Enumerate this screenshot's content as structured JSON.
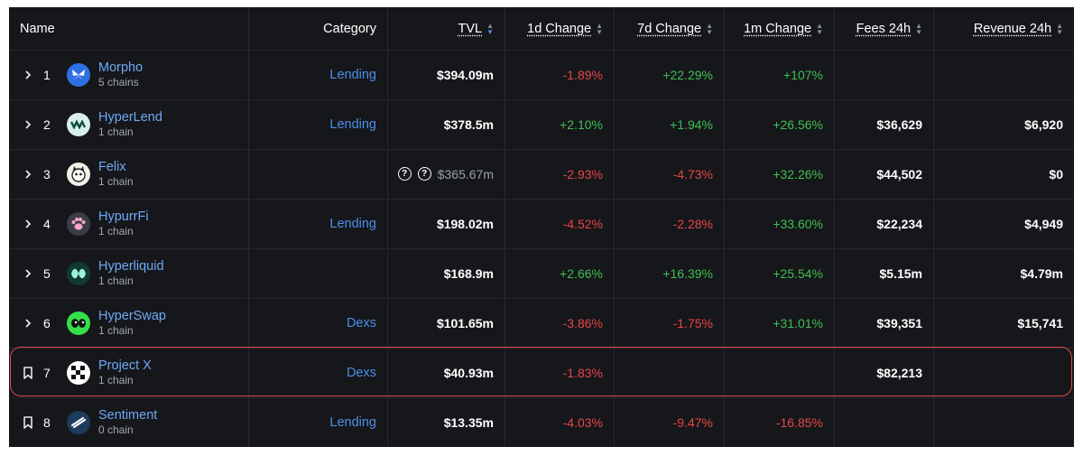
{
  "headers": {
    "name": "Name",
    "category": "Category",
    "tvl": "TVL",
    "change_1d": "1d Change",
    "change_7d": "7d Change",
    "change_1m": "1m Change",
    "fees_24h": "Fees 24h",
    "revenue_24h": "Revenue 24h"
  },
  "rows": [
    {
      "rank": "1",
      "name": "Morpho",
      "chains": "5 chains",
      "category": "Lending",
      "tvl": "$394.09m",
      "d1": "-1.89%",
      "d7": "+22.29%",
      "m1": "+107%",
      "fees": "",
      "revenue": "",
      "icon": "butterfly-icon",
      "color": "#2f6fe4"
    },
    {
      "rank": "2",
      "name": "HyperLend",
      "chains": "1 chain",
      "category": "Lending",
      "tvl": "$378.5m",
      "d1": "+2.10%",
      "d7": "+1.94%",
      "m1": "+26.56%",
      "fees": "$36,629",
      "revenue": "$6,920",
      "icon": "wave-icon",
      "color": "#d9efe9"
    },
    {
      "rank": "3",
      "name": "Felix",
      "chains": "1 chain",
      "category": "",
      "tvl": "$365.67m",
      "d1": "-2.93%",
      "d7": "-4.73%",
      "m1": "+32.26%",
      "fees": "$44,502",
      "revenue": "$0",
      "icon": "cat-icon",
      "color": "#f2efe6"
    },
    {
      "rank": "4",
      "name": "HypurrFi",
      "chains": "1 chain",
      "category": "Lending",
      "tvl": "$198.02m",
      "d1": "-4.52%",
      "d7": "-2.28%",
      "m1": "+33.60%",
      "fees": "$22,234",
      "revenue": "$4,949",
      "icon": "paw-icon",
      "color": "#3a3d48"
    },
    {
      "rank": "5",
      "name": "Hyperliquid",
      "chains": "1 chain",
      "category": "",
      "tvl": "$168.9m",
      "d1": "+2.66%",
      "d7": "+16.39%",
      "m1": "+25.54%",
      "fees": "$5.15m",
      "revenue": "$4.79m",
      "icon": "hyperliquid-icon",
      "color": "#0f3a34"
    },
    {
      "rank": "6",
      "name": "HyperSwap",
      "chains": "1 chain",
      "category": "Dexs",
      "tvl": "$101.65m",
      "d1": "-3.86%",
      "d7": "-1.75%",
      "m1": "+31.01%",
      "fees": "$39,351",
      "revenue": "$15,741",
      "icon": "eyes-icon",
      "color": "#33e04a"
    },
    {
      "rank": "7",
      "name": "Project X",
      "chains": "1 chain",
      "category": "Dexs",
      "tvl": "$40.93m",
      "d1": "-1.83%",
      "d7": "",
      "m1": "",
      "fees": "$82,213",
      "revenue": "",
      "icon": "checker-icon",
      "color": "#ffffff"
    },
    {
      "rank": "8",
      "name": "Sentiment",
      "chains": "0 chain",
      "category": "Lending",
      "tvl": "$13.35m",
      "d1": "-4.03%",
      "d7": "-9.47%",
      "m1": "-16.85%",
      "fees": "",
      "revenue": "",
      "icon": "sentiment-icon",
      "color": "#1d3b5c"
    }
  ],
  "colors": {
    "background": "#16171b",
    "link": "#6ea9f6",
    "category": "#4a90e8",
    "positive": "#3fbf52",
    "negative": "#e64646",
    "highlight": "#e04848"
  }
}
